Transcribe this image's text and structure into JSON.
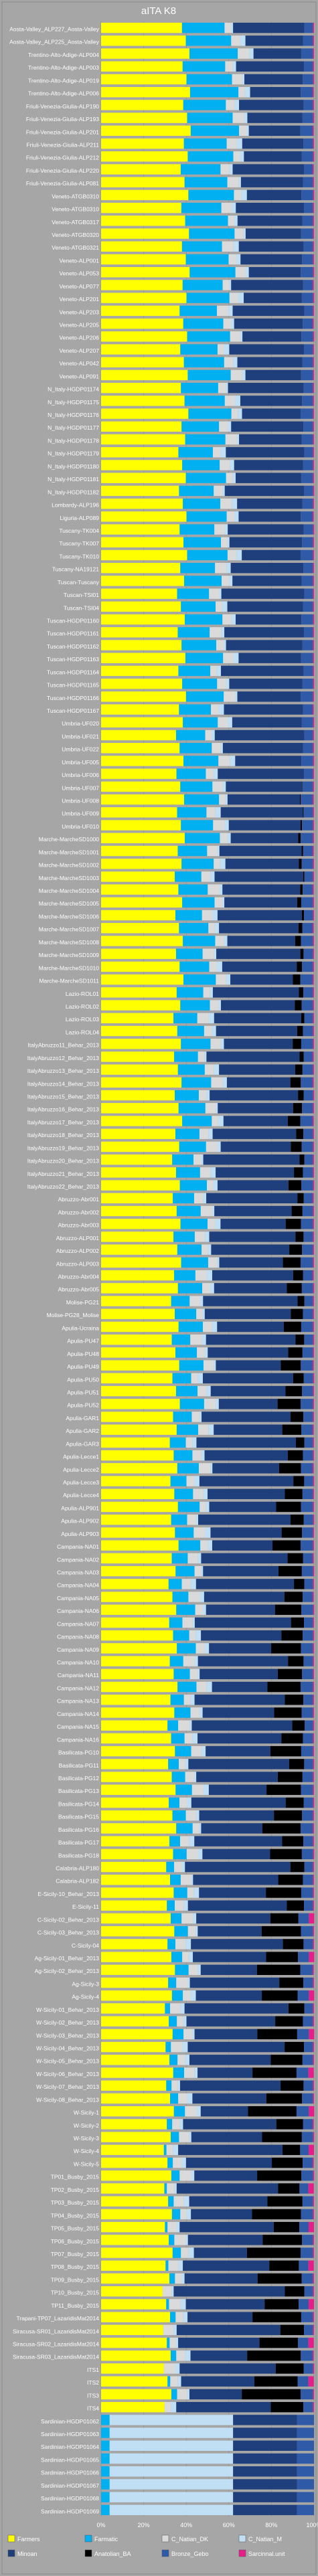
{
  "chart_data": {
    "type": "bar",
    "orientation": "horizontal",
    "stacked": true,
    "title": "aITA K8",
    "xlim": [
      0,
      100
    ],
    "xticks": [
      "0%",
      "20%",
      "40%",
      "60%",
      "80%",
      "100%"
    ],
    "grid": true,
    "legend_position": "bottom",
    "colors": [
      "#ffff00",
      "#00b0f0",
      "#dadada",
      "#c0dff5",
      "#1f3e7c",
      "#000000",
      "#2e5aa8",
      "#e61e8a"
    ],
    "series_names": [
      "Farmers",
      "Farmatic",
      "C_Natian_DK",
      "C_Natian_M",
      "Minoan",
      "Anatolian_BA",
      "Bronze_Gebo",
      "Sarcinnal.unit"
    ],
    "categories": [
      "Aosta-Valley_ALP227_Aosta-Valley",
      "Aosta-Valley_ALP225_Aosta-Valley",
      "Trentino-Alto-Adige-ALP004",
      "Trentino-Alto-Adige-ALP003",
      "Trentino-Alto-Adige-ALP019",
      "Trentino-Alto-Adige-ALP006",
      "Friuli-Venezia-Giulia-ALP190",
      "Friuli-Venezia-Giulia-ALP193",
      "Friuli-Venezia-Giulia-ALP201",
      "Friuli-Venezia-Giulia-ALP211",
      "Friuli-Venezia-Giulia-ALP212",
      "Friuli-Venezia-Giulia-ALP220",
      "Friuli-Venezia-Giulia-ALP081",
      "Veneto-ATGB0310",
      "Veneto-ATGB0310",
      "Veneto-ATGB0317",
      "Veneto-ATGB0320",
      "Veneto-ATGB0321",
      "Veneto-ALP001",
      "Veneto-ALP053",
      "Veneto-ALP077",
      "Veneto-ALP201",
      "Veneto-ALP203",
      "Veneto-ALP205",
      "Veneto-ALP206",
      "Veneto-ALP207",
      "Veneto-ALP042",
      "Veneto-ALP091",
      "N_Italy-HGDP01174",
      "N_Italy-HGDP01175",
      "N_Italy-HGDP01176",
      "N_Italy-HGDP01177",
      "N_Italy-HGDP01178",
      "N_Italy-HGDP01179",
      "N_Italy-HGDP01180",
      "N_Italy-HGDP01181",
      "N_Italy-HGDP01182",
      "Lombardy-ALP196",
      "Liguria-ALP089",
      "Tuscany-TK004",
      "Tuscany-TK007",
      "Tuscany-TK010",
      "Tuscany-NA19121",
      "Tuscan-Tuscany",
      "Tuscan-TSI01",
      "Tuscan-TSI04",
      "Tuscan-HGDP01160",
      "Tuscan-HGDP01161",
      "Tuscan-HGDP01162",
      "Tuscan-HGDP01163",
      "Tuscan-HGDP01164",
      "Tuscan-HGDP01165",
      "Tuscan-HGDP01166",
      "Tuscan-HGDP01167",
      "Umbria-UF020",
      "Umbria-UF021",
      "Umbria-UF022",
      "Umbria-UF005",
      "Umbria-UF006",
      "Umbria-UF007",
      "Umbria-UF008",
      "Umbria-UF009",
      "Umbria-UF010",
      "Marche-MarcheSD1000",
      "Marche-MarcheSD1001",
      "Marche-MarcheSD1002",
      "Marche-MarcheSD1003",
      "Marche-MarcheSD1004",
      "Marche-MarcheSD1005",
      "Marche-MarcheSD1006",
      "Marche-MarcheSD1007",
      "Marche-MarcheSD1008",
      "Marche-MarcheSD1009",
      "Marche-MarcheSD1010",
      "Marche-MarcheSD1011",
      "Lazio-ROL01",
      "Lazio-ROL02",
      "Lazio-ROL03",
      "Lazio-ROL04",
      "ItalyAbruzzo11_Behar_2013",
      "ItalyAbruzzo12_Behar_2013",
      "ItalyAbruzzo13_Behar_2013",
      "ItalyAbruzzo14_Behar_2013",
      "ItalyAbruzzo15_Behar_2013",
      "ItalyAbruzzo16_Behar_2013",
      "ItalyAbruzzo17_Behar_2013",
      "ItalyAbruzzo18_Behar_2013",
      "ItalyAbruzzo19_Behar_2013",
      "ItalyAbruzzo20_Behar_2013",
      "ItalyAbruzzo21_Behar_2013",
      "ItalyAbruzzo22_Behar_2013",
      "Abruzzo-Abr001",
      "Abruzzo-Abr002",
      "Abruzzo-Abr003",
      "Abruzzo-ALP001",
      "Abruzzo-ALP002",
      "Abruzzo-ALP003",
      "Abruzzo-Abr004",
      "Abruzzo-Abr005",
      "Molise-PG21",
      "Molise-PG28_Molise",
      "Apulia-Ucraina",
      "Apulia-PU47",
      "Apulia-PU48",
      "Apulia-PU49",
      "Apulia-PU50",
      "Apulia-PU51",
      "Apulia-PU52",
      "Apulia-GAR1",
      "Apulia-GAR2",
      "Apulia-GAR3",
      "Apulia-Lecce1",
      "Apulia-Lecce2",
      "Apulia-Lecce3",
      "Apulia-Lecce4",
      "Apulia-ALP901",
      "Apulia-ALP902",
      "Apulia-ALP903",
      "Campania-NA01",
      "Campania-NA02",
      "Campania-NA03",
      "Campania-NA04",
      "Campania-NA05",
      "Campania-NA06",
      "Campania-NA07",
      "Campania-NA08",
      "Campania-NA09",
      "Campania-NA10",
      "Campania-NA11",
      "Campania-NA12",
      "Campania-NA13",
      "Campania-NA14",
      "Campania-NA15",
      "Campania-NA16",
      "Basilicata-PG10",
      "Basilicata-PG11",
      "Basilicata-PG12",
      "Basilicata-PG13",
      "Basilicata-PG14",
      "Basilicata-PG15",
      "Basilicata-PG16",
      "Basilicata-PG17",
      "Basilicata-PG18",
      "Calabria-ALP180",
      "Calabria-ALP182",
      "E-Sicily-10_Behar_2013",
      "E-Sicily-11",
      "C-Sicily-02_Behar_2013",
      "C-Sicily-03_Behar_2013",
      "C-Sicily-04",
      "Ag-Sicily-01_Behar_2013",
      "Ag-Sicily-02_Behar_2013",
      "Ag-Sicily-3",
      "Ag-Sicily-4",
      "W-Sicily-01_Behar_2013",
      "W-Sicily-02_Behar_2013",
      "W-Sicily-03_Behar_2013",
      "W-Sicily-04_Behar_2013",
      "W-Sicily-05_Behar_2013",
      "W-Sicily-06_Behar_2013",
      "W-Sicily-07_Behar_2013",
      "W-Sicily-08_Behar_2013",
      "W-Sicily-1",
      "W-Sicily-2",
      "W-Sicily-3",
      "W-Sicily-4",
      "W-Sicily-5",
      "TP01_Busby_2015",
      "TP02_Busby_2015",
      "TP03_Busby_2015",
      "TP04_Busby_2015",
      "TP05_Busby_2015",
      "TP06_Busby_2015",
      "TP07_Busby_2015",
      "TP08_Busby_2015",
      "TP09_Busby_2015",
      "TP10_Busby_2015",
      "TP11_Busby_2015",
      "Trapani-TP07_LazaridisMat2014",
      "Siracusa-SR01_LazaridisMat2014",
      "Siracusa-SR02_LazaridisMat2014",
      "Siracusa-SR03_LazaridisMat2014",
      "ITS1",
      "ITS2",
      "ITS3",
      "ITS4",
      "Sardinian-HGDP01062",
      "Sardinian-HGDP01063",
      "Sardinian-HGDP01064",
      "Sardinian-HGDP01065",
      "Sardinian-HGDP01066",
      "Sardinian-HGDP01067",
      "Sardinian-HGDP01068",
      "Sardinian-HGDP01069"
    ]
  },
  "legend": {
    "items": [
      {
        "label": "Farmers",
        "color": "#ffff00"
      },
      {
        "label": "Farmatic",
        "color": "#00b0f0"
      },
      {
        "label": "C_Natian_DK",
        "color": "#dadada"
      },
      {
        "label": "C_Natian_M",
        "color": "#c0dff5"
      },
      {
        "label": "Minoan",
        "color": "#1f3e7c"
      },
      {
        "label": "Anatolian_BA",
        "color": "#000000"
      },
      {
        "label": "Bronze_Gebo",
        "color": "#2e5aa8"
      },
      {
        "label": "Sarcinnal.unit",
        "color": "#e61e8a"
      }
    ]
  }
}
